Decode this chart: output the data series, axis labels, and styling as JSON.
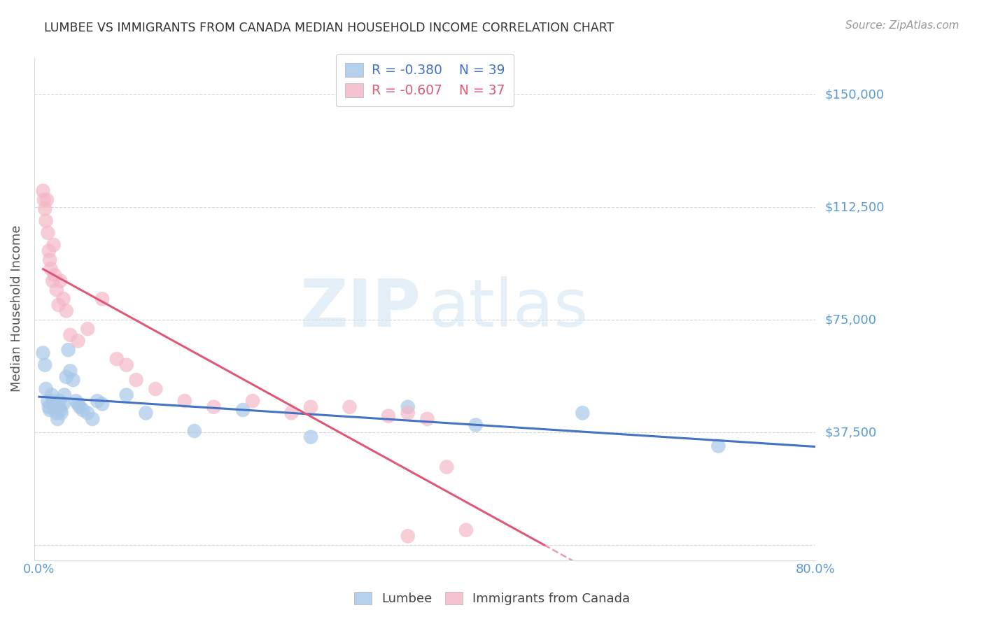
{
  "title": "LUMBEE VS IMMIGRANTS FROM CANADA MEDIAN HOUSEHOLD INCOME CORRELATION CHART",
  "source": "Source: ZipAtlas.com",
  "ylabel": "Median Household Income",
  "yticks": [
    0,
    37500,
    75000,
    112500,
    150000
  ],
  "ytick_labels": [
    "",
    "$37,500",
    "$75,000",
    "$112,500",
    "$150,000"
  ],
  "ylim": [
    -5000,
    162500
  ],
  "xlim": [
    -0.005,
    0.8
  ],
  "watermark_zip": "ZIP",
  "watermark_atlas": "atlas",
  "lumbee_color": "#a8c8e8",
  "lumbee_line_color": "#4472c4",
  "canada_color": "#f4b8c8",
  "canada_line_color": "#e05878",
  "lumbee_scatter_x": [
    0.004,
    0.006,
    0.007,
    0.009,
    0.01,
    0.011,
    0.013,
    0.014,
    0.015,
    0.016,
    0.018,
    0.019,
    0.02,
    0.021,
    0.022,
    0.023,
    0.025,
    0.026,
    0.028,
    0.03,
    0.032,
    0.035,
    0.038,
    0.04,
    0.042,
    0.045,
    0.05,
    0.055,
    0.06,
    0.065,
    0.09,
    0.11,
    0.16,
    0.21,
    0.28,
    0.38,
    0.45,
    0.56,
    0.7
  ],
  "lumbee_scatter_y": [
    64000,
    60000,
    52000,
    48000,
    46000,
    45000,
    50000,
    48000,
    47000,
    46000,
    44000,
    42000,
    46000,
    48000,
    45000,
    44000,
    47000,
    50000,
    56000,
    65000,
    58000,
    55000,
    48000,
    47000,
    46000,
    45000,
    44000,
    42000,
    48000,
    47000,
    50000,
    44000,
    38000,
    45000,
    36000,
    46000,
    40000,
    44000,
    33000
  ],
  "canada_scatter_x": [
    0.004,
    0.005,
    0.006,
    0.007,
    0.008,
    0.009,
    0.01,
    0.011,
    0.012,
    0.014,
    0.015,
    0.016,
    0.018,
    0.02,
    0.022,
    0.025,
    0.028,
    0.032,
    0.04,
    0.05,
    0.065,
    0.08,
    0.09,
    0.1,
    0.12,
    0.15,
    0.18,
    0.22,
    0.26,
    0.28,
    0.32,
    0.36,
    0.38,
    0.4,
    0.42,
    0.44,
    0.38
  ],
  "canada_scatter_y": [
    118000,
    115000,
    112000,
    108000,
    115000,
    104000,
    98000,
    95000,
    92000,
    88000,
    100000,
    90000,
    85000,
    80000,
    88000,
    82000,
    78000,
    70000,
    68000,
    72000,
    82000,
    62000,
    60000,
    55000,
    52000,
    48000,
    46000,
    48000,
    44000,
    46000,
    46000,
    43000,
    44000,
    42000,
    26000,
    5000,
    3000
  ],
  "background_color": "#ffffff",
  "grid_color": "#cccccc",
  "title_color": "#333333",
  "right_label_color": "#5b9bd5",
  "source_color": "#999999",
  "lumbee_R": -0.38,
  "lumbee_N": 39,
  "canada_R": -0.607,
  "canada_N": 37
}
